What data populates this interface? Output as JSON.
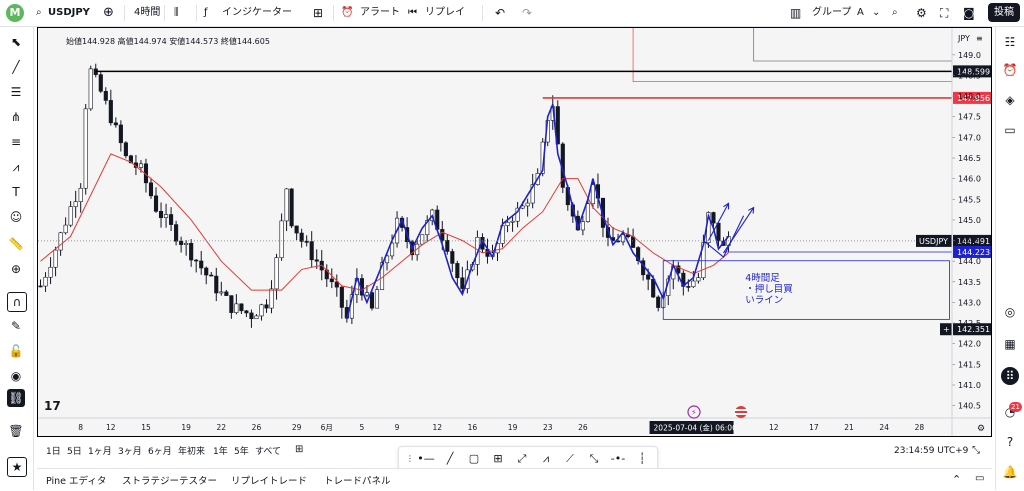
{
  "toolbar": {
    "avatar_letter": "M",
    "symbol": "USDJPY",
    "interval": "4時間",
    "indicators": "インジケーター",
    "alert": "アラート",
    "replay": "リプレイ",
    "group": "グループ",
    "group_letter": "A",
    "post": "投稿"
  },
  "chart_data": {
    "type": "candlestick",
    "symbol": "USDJPY",
    "ohlc_label": "始値144.928 高値144.974 安値144.573 終値144.605",
    "currency_label": "JPY",
    "ylim": [
      140.2,
      149.65
    ],
    "y_ticks": [
      149.0,
      148.5,
      148.0,
      147.5,
      147.0,
      146.5,
      146.0,
      145.5,
      145.0,
      144.5,
      144.0,
      143.5,
      143.0,
      142.5,
      142.0,
      141.5,
      141.0,
      140.5
    ],
    "x_tick_labels": [
      "8",
      "12",
      "15",
      "19",
      "22",
      "26",
      "29",
      "6月",
      "5",
      "9",
      "12",
      "16",
      "19",
      "23",
      "26",
      "12",
      "17",
      "21",
      "24",
      "28"
    ],
    "x_tick_pos": [
      8,
      14,
      21,
      29,
      36,
      43,
      51,
      57,
      64,
      71,
      79,
      86,
      94,
      101,
      108,
      146,
      154,
      161,
      168,
      175
    ],
    "n_bars": 182,
    "price_path": [
      [
        0,
        143.4
      ],
      [
        3,
        144.3
      ],
      [
        6,
        145.3
      ],
      [
        8,
        145.9
      ],
      [
        9,
        147.8
      ],
      [
        10,
        148.6
      ],
      [
        12,
        148.1
      ],
      [
        14,
        147.5
      ],
      [
        17,
        146.5
      ],
      [
        20,
        146.2
      ],
      [
        23,
        145.3
      ],
      [
        26,
        144.8
      ],
      [
        30,
        144.2
      ],
      [
        34,
        143.5
      ],
      [
        38,
        142.9
      ],
      [
        42,
        142.7
      ],
      [
        45,
        143.0
      ],
      [
        47,
        144.0
      ],
      [
        49,
        145.8
      ],
      [
        50,
        145.0
      ],
      [
        52,
        144.5
      ],
      [
        55,
        144.0
      ],
      [
        59,
        143.2
      ],
      [
        61,
        142.6
      ],
      [
        63,
        143.6
      ],
      [
        66,
        142.8
      ],
      [
        68,
        143.8
      ],
      [
        71,
        144.9
      ],
      [
        74,
        144.3
      ],
      [
        78,
        145.1
      ],
      [
        81,
        144.4
      ],
      [
        84,
        143.2
      ],
      [
        87,
        144.5
      ],
      [
        90,
        144.1
      ],
      [
        93,
        145.0
      ],
      [
        96,
        145.3
      ],
      [
        99,
        146.0
      ],
      [
        101,
        147.5
      ],
      [
        102,
        147.8
      ],
      [
        104,
        145.8
      ],
      [
        107,
        144.7
      ],
      [
        110,
        146.0
      ],
      [
        113,
        144.4
      ],
      [
        116,
        144.6
      ],
      [
        119,
        144.1
      ],
      [
        123,
        143.0
      ],
      [
        126,
        143.9
      ],
      [
        128,
        143.4
      ],
      [
        131,
        143.6
      ],
      [
        133,
        145.1
      ],
      [
        136,
        144.3
      ],
      [
        137,
        144.6
      ]
    ],
    "series": [
      {
        "name": "",
        "color": "#e53935",
        "values": [
          [
            0,
            144.0
          ],
          [
            6,
            144.6
          ],
          [
            10,
            145.6
          ],
          [
            14,
            146.6
          ],
          [
            18,
            146.4
          ],
          [
            24,
            145.8
          ],
          [
            30,
            145.0
          ],
          [
            36,
            144.0
          ],
          [
            42,
            143.3
          ],
          [
            48,
            143.3
          ],
          [
            52,
            143.8
          ],
          [
            56,
            143.9
          ],
          [
            60,
            143.4
          ],
          [
            64,
            143.3
          ],
          [
            68,
            143.6
          ],
          [
            72,
            144.0
          ],
          [
            76,
            144.4
          ],
          [
            80,
            144.7
          ],
          [
            84,
            144.5
          ],
          [
            88,
            144.2
          ],
          [
            92,
            144.3
          ],
          [
            96,
            144.8
          ],
          [
            100,
            145.2
          ],
          [
            104,
            146.0
          ],
          [
            107,
            146.0
          ],
          [
            110,
            145.3
          ],
          [
            114,
            144.8
          ],
          [
            118,
            144.6
          ],
          [
            122,
            144.2
          ],
          [
            126,
            143.9
          ],
          [
            130,
            143.7
          ],
          [
            134,
            143.9
          ],
          [
            137,
            144.2
          ]
        ]
      },
      {
        "name": "",
        "color": "#1e22cc",
        "values": [
          [
            61,
            142.6
          ],
          [
            63,
            143.6
          ],
          [
            65,
            143.0
          ],
          [
            68,
            143.9
          ],
          [
            70,
            144.5
          ],
          [
            72,
            145.0
          ],
          [
            74,
            144.3
          ],
          [
            76,
            144.8
          ],
          [
            78,
            145.1
          ],
          [
            80,
            144.4
          ],
          [
            82,
            143.6
          ],
          [
            84,
            143.2
          ],
          [
            86,
            143.9
          ],
          [
            88,
            144.5
          ],
          [
            90,
            144.1
          ],
          [
            92,
            144.9
          ],
          [
            95,
            145.2
          ],
          [
            97,
            145.6
          ],
          [
            100,
            146.2
          ],
          [
            101,
            147.5
          ],
          [
            102,
            147.8
          ],
          [
            103,
            146.6
          ],
          [
            105,
            145.8
          ],
          [
            107,
            144.8
          ],
          [
            109,
            145.5
          ],
          [
            110,
            146.0
          ],
          [
            112,
            145.1
          ],
          [
            114,
            144.4
          ],
          [
            116,
            144.7
          ],
          [
            118,
            144.2
          ],
          [
            120,
            143.9
          ],
          [
            122,
            143.6
          ],
          [
            124,
            143.1
          ],
          [
            126,
            143.9
          ],
          [
            128,
            143.4
          ],
          [
            130,
            143.6
          ],
          [
            132,
            144.4
          ],
          [
            133,
            145.1
          ],
          [
            134,
            144.8
          ],
          [
            135,
            144.3
          ],
          [
            137,
            144.6
          ]
        ]
      }
    ],
    "hlines": [
      {
        "price": 148.599,
        "label": "148.599",
        "color": "#000000",
        "x_from": 11
      },
      {
        "price": 147.956,
        "label": "147.956",
        "color": "#e53935",
        "x_from": 100
      }
    ],
    "current_price": {
      "price": 144.491,
      "label": "144.491",
      "name": "USDJPY"
    },
    "blue_level": {
      "price": 144.223,
      "label": "144.223"
    },
    "crosshair_price": {
      "price": 142.351,
      "label": "142.351"
    },
    "annotation_box": {
      "price_top": 144.01,
      "price_bottom": 142.59,
      "x_from": 124,
      "x_to": 181
    },
    "annotation_text": [
      "4時間足",
      "・押し目買",
      "いライン"
    ],
    "time_label": "2025-07-04 (金)  06:00"
  },
  "timeframes": [
    "1日",
    "5日",
    "1ヶ月",
    "3ヶ月",
    "6ヶ月",
    "年初来",
    "1年",
    "5年",
    "すべて"
  ],
  "clock": "23:14:59 UTC+9",
  "panel_tabs": [
    "Pine エディタ",
    "ストラテジーテスター",
    "リプレイトレード",
    "トレードパネル"
  ],
  "notification_count": "21"
}
